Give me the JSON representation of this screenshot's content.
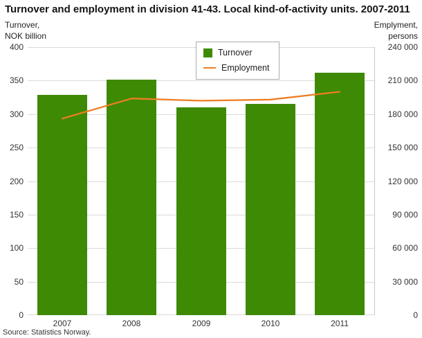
{
  "page": {
    "background": "#ffffff"
  },
  "chart_data": {
    "type": "bar+line",
    "title": "Turnover and employment in division 41-43. Local kind-of-activity units. 2007-2011",
    "source": "Source: Statistics Norway.",
    "categories": [
      "2007",
      "2008",
      "2009",
      "2010",
      "2011"
    ],
    "series": [
      {
        "name": "Turnover",
        "type": "bar",
        "axis": "left",
        "color": "#3e8a05",
        "values": [
          329,
          351,
          310,
          315,
          362
        ]
      },
      {
        "name": "Employment",
        "type": "line",
        "axis": "right",
        "color": "#ee7d23",
        "values": [
          176000,
          194000,
          192000,
          193000,
          200000
        ]
      }
    ],
    "left_axis": {
      "label_line1": "Turnover,",
      "label_line2": "NOK billion",
      "min": 0,
      "max": 400,
      "ticks": [
        "400",
        "350",
        "300",
        "250",
        "200",
        "150",
        "100",
        "50",
        "0"
      ]
    },
    "right_axis": {
      "label_line1": "Emplyment,",
      "label_line2": "persons",
      "min": 0,
      "max": 240000,
      "ticks": [
        "240 000",
        "210 000",
        "180 000",
        "150 000",
        "120 000",
        "90 000",
        "60 000",
        "30 000",
        "0"
      ]
    },
    "legend_position": "top-center",
    "grid": "horizontal",
    "gridline_color": "#d9d9d9"
  }
}
